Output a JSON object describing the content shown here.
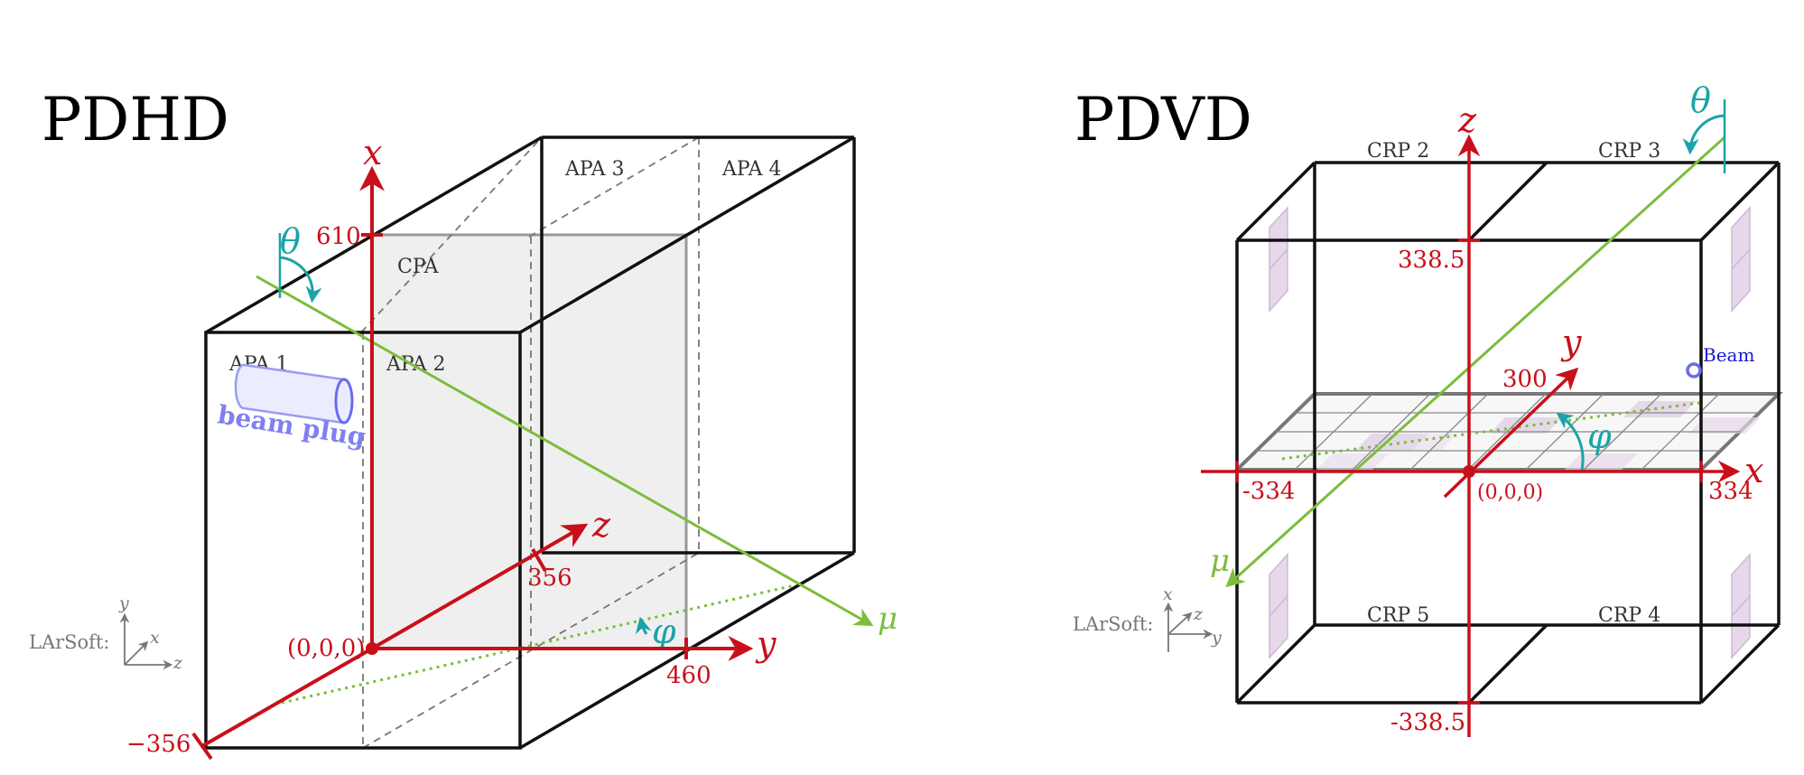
{
  "left": {
    "title": "PDHD",
    "labels": {
      "apa1": "APA 1",
      "apa2": "APA 2",
      "apa3": "APA 3",
      "apa4": "APA 4",
      "cpa": "CPA",
      "beam_plug": "beam plug"
    },
    "axes": {
      "x": "x",
      "y": "y",
      "z": "z"
    },
    "ticks": {
      "x_max": "610",
      "z_max": "356",
      "z_min": "−356",
      "y_max": "460",
      "origin": "(0,0,0)"
    },
    "angles": {
      "theta": "θ",
      "phi": "φ"
    },
    "muon": "μ",
    "larsoft": {
      "label": "LArSoft:",
      "up": "y",
      "diag": "x",
      "right": "z"
    }
  },
  "right": {
    "title": "PDVD",
    "labels": {
      "crp2": "CRP 2",
      "crp3": "CRP 3",
      "crp4": "CRP 4",
      "crp5": "CRP 5",
      "beam": "Beam"
    },
    "axes": {
      "x": "x",
      "y": "y",
      "z": "z"
    },
    "ticks": {
      "z_max": "338.5",
      "z_min": "-338.5",
      "x_min": "-334",
      "x_max": "334",
      "y_max": "300",
      "origin": "(0,0,0)"
    },
    "angles": {
      "theta": "θ",
      "phi": "φ"
    },
    "muon": "μ",
    "larsoft": {
      "label": "LArSoft:",
      "up": "x",
      "diag": "z",
      "right": "y"
    }
  },
  "colors": {
    "axis": "#c8101a",
    "muon": "#7cbd3c",
    "angle": "#1aa3a8",
    "beam": "#1a1ad0",
    "plug": "#8080f0",
    "cpa_fill": "#efefef",
    "pd_fill": "#e6d8ea"
  }
}
